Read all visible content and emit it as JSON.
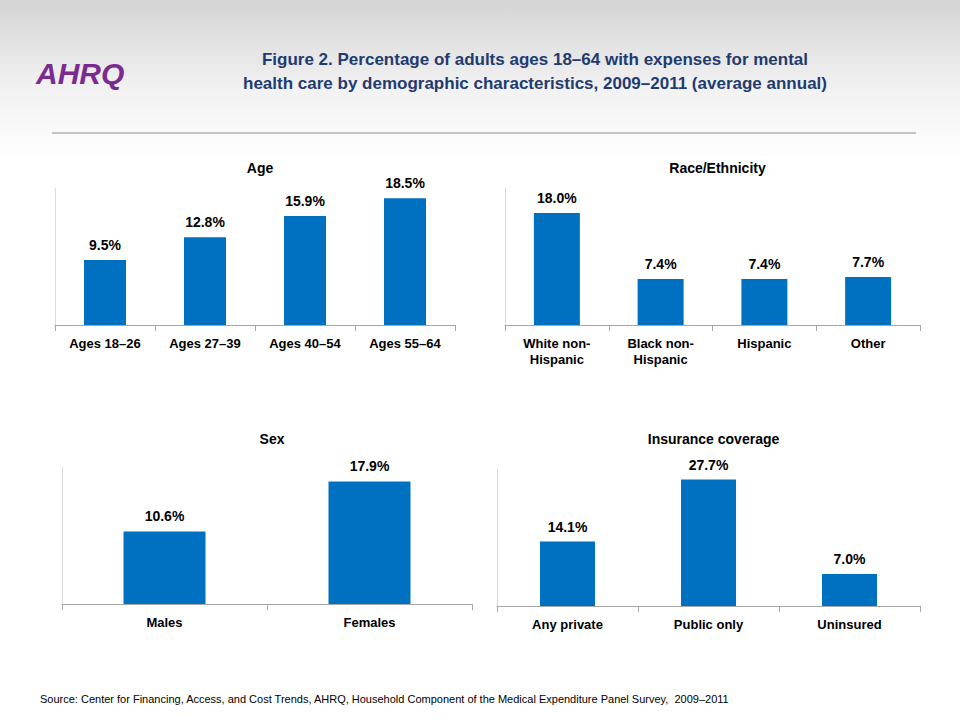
{
  "logo": "AHRQ",
  "title": "Figure 2. Percentage of adults ages 18–64 with expenses for mental\nhealth care by demographic characteristics, 2009–2011 (average annual)",
  "source": "Source: Center for Financing, Access, and Cost Trends, AHRQ, Household Component of the Medical Expenditure Panel Survey,  2009–2011",
  "chart_data": [
    {
      "type": "bar",
      "title": "Age",
      "categories": [
        "Ages 18–26",
        "Ages 27–39",
        "Ages 40–54",
        "Ages 55–64"
      ],
      "values": [
        9.5,
        12.8,
        15.9,
        18.5
      ],
      "value_labels": [
        "9.5%",
        "12.8%",
        "15.9%",
        "18.5%"
      ],
      "color": "#0070c0",
      "ylim": [
        0,
        20
      ],
      "grid": false,
      "data_labels": true,
      "tick_labels": "x"
    },
    {
      "type": "bar",
      "title": "Race/Ethnicity",
      "categories": [
        "White non-\nHispanic",
        "Black non-\nHispanic",
        "Hispanic",
        "Other"
      ],
      "values": [
        18.0,
        7.4,
        7.4,
        7.7
      ],
      "value_labels": [
        "18.0%",
        "7.4%",
        "7.4%",
        "7.7%"
      ],
      "color": "#0070c0",
      "ylim": [
        0,
        22
      ],
      "grid": false,
      "data_labels": true,
      "tick_labels": "x"
    },
    {
      "type": "bar",
      "title": "Sex",
      "categories": [
        "Males",
        "Females"
      ],
      "values": [
        10.6,
        17.9
      ],
      "value_labels": [
        "10.6%",
        "17.9%"
      ],
      "color": "#0070c0",
      "ylim": [
        0,
        20
      ],
      "grid": false,
      "data_labels": true,
      "tick_labels": "x"
    },
    {
      "type": "bar",
      "title": "Insurance coverage",
      "categories": [
        "Any private",
        "Public only",
        "Uninsured"
      ],
      "values": [
        14.1,
        27.7,
        7.0
      ],
      "value_labels": [
        "14.1%",
        "27.7%",
        "7.0%"
      ],
      "color": "#0070c0",
      "ylim": [
        0,
        30
      ],
      "grid": false,
      "data_labels": true,
      "tick_labels": "x"
    }
  ]
}
